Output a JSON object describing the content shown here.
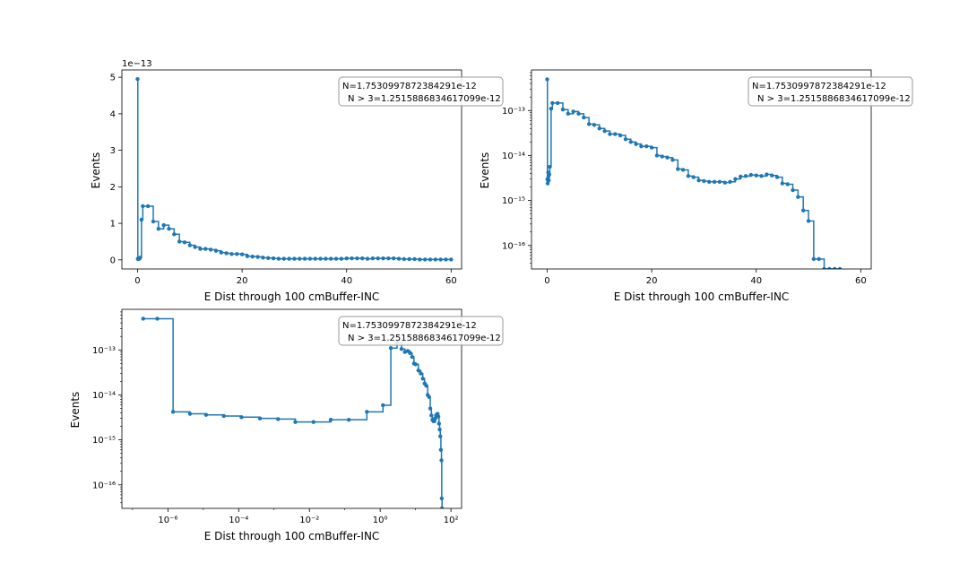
{
  "chart_data": [
    {
      "type": "line",
      "xlabel": "E Dist through 100 cmBuffer-INC",
      "ylabel": "Events",
      "yscale": "linear",
      "xscale": "linear",
      "xlim": [
        -3,
        62
      ],
      "ylim": [
        -0.25,
        5.2
      ],
      "x_ticks": [
        "0",
        "20",
        "40",
        "60"
      ],
      "y_ticks": [
        "0",
        "1",
        "2",
        "3",
        "4",
        "5"
      ],
      "y_multiplier": "1e−13",
      "annotation": [
        "N=1.7530997872384291e-12",
        "N > 3=1.2515886834617099e-12"
      ],
      "series_color": "#1f77b4",
      "x": [
        0,
        0.05,
        0.1,
        0.15,
        0.2,
        0.25,
        0.3,
        0.4,
        0.5,
        0.75,
        1,
        2,
        3,
        4,
        5,
        6,
        7,
        8,
        9,
        10,
        11,
        12,
        13,
        14,
        15,
        16,
        17,
        18,
        19,
        20,
        21,
        22,
        23,
        24,
        25,
        26,
        27,
        28,
        29,
        30,
        31,
        32,
        33,
        34,
        35,
        36,
        37,
        38,
        39,
        40,
        41,
        42,
        43,
        44,
        45,
        46,
        47,
        48,
        49,
        50,
        51,
        52,
        53,
        54,
        55,
        56,
        57,
        58,
        59,
        60
      ],
      "y": [
        4.95,
        0.03,
        0.02,
        0.03,
        0.04,
        0.03,
        0.03,
        0.04,
        0.06,
        1.1,
        1.47,
        1.47,
        1.05,
        0.85,
        0.95,
        0.85,
        0.7,
        0.5,
        0.48,
        0.4,
        0.35,
        0.3,
        0.3,
        0.28,
        0.25,
        0.2,
        0.18,
        0.16,
        0.16,
        0.15,
        0.1,
        0.09,
        0.08,
        0.06,
        0.05,
        0.04,
        0.03,
        0.03,
        0.03,
        0.03,
        0.03,
        0.03,
        0.03,
        0.03,
        0.03,
        0.03,
        0.03,
        0.03,
        0.03,
        0.04,
        0.04,
        0.04,
        0.04,
        0.03,
        0.04,
        0.04,
        0.04,
        0.04,
        0.04,
        0.03,
        0.02,
        0.02,
        0.02,
        0.01,
        0.01,
        0.01,
        0.01,
        0.01,
        0.01,
        0.01
      ]
    },
    {
      "type": "line",
      "xlabel": "E Dist through 100 cmBuffer-INC",
      "ylabel": "Events",
      "yscale": "log",
      "xscale": "linear",
      "xlim": [
        -3,
        62
      ],
      "ylim": [
        3e-17,
        8e-13
      ],
      "x_ticks": [
        "0",
        "20",
        "40",
        "60"
      ],
      "y_ticks": [
        "10⁻¹³",
        "10⁻¹⁴",
        "10⁻¹⁵",
        "10⁻¹⁶"
      ],
      "annotation": [
        "N=1.7530997872384291e-12",
        "N > 3=1.2515886834617099e-12"
      ],
      "series_color": "#1f77b4",
      "x": [
        0,
        0.05,
        0.1,
        0.15,
        0.2,
        0.25,
        0.3,
        0.4,
        0.5,
        0.75,
        1,
        2,
        3,
        4,
        5,
        6,
        7,
        8,
        9,
        10,
        11,
        12,
        13,
        14,
        15,
        16,
        17,
        18,
        19,
        20,
        21,
        22,
        23,
        24,
        25,
        26,
        27,
        28,
        29,
        30,
        31,
        32,
        33,
        34,
        35,
        36,
        37,
        38,
        39,
        40,
        41,
        42,
        43,
        44,
        45,
        46,
        47,
        48,
        49,
        50,
        51,
        52,
        53,
        54,
        55,
        56
      ],
      "y": [
        4.95e-13,
        3e-15,
        2.4e-15,
        2.8e-15,
        4.2e-15,
        3.5e-15,
        2.8e-15,
        3.8e-15,
        5.6e-15,
        1.1e-13,
        1.47e-13,
        1.47e-13,
        1.05e-13,
        8.5e-14,
        9.5e-14,
        8.5e-14,
        7e-14,
        5e-14,
        4.8e-14,
        4e-14,
        3.5e-14,
        3e-14,
        3e-14,
        2.8e-14,
        2.3e-14,
        2e-14,
        1.8e-14,
        1.6e-14,
        1.6e-14,
        1.5e-14,
        1e-14,
        9.5e-15,
        9e-15,
        8e-15,
        5e-15,
        4.8e-15,
        3.5e-15,
        3.3e-15,
        2.8e-15,
        2.7e-15,
        2.6e-15,
        2.6e-15,
        2.6e-15,
        2.5e-15,
        2.6e-15,
        3e-15,
        3.4e-15,
        3.5e-15,
        3.7e-15,
        3.6e-15,
        3.5e-15,
        3.8e-15,
        3.6e-15,
        3.3e-15,
        2.4e-15,
        2.3e-15,
        1.7e-15,
        1.2e-15,
        6e-16,
        3.5e-16,
        5e-17,
        5e-17,
        3e-17,
        3e-17,
        3e-17,
        3e-17
      ]
    },
    {
      "type": "line",
      "xlabel": "E Dist through 100 cmBuffer-INC",
      "ylabel": "Events",
      "yscale": "log",
      "xscale": "log",
      "xlim": [
        5e-08,
        200
      ],
      "ylim": [
        3e-17,
        8e-13
      ],
      "x_ticks": [
        "10⁻⁶",
        "10⁻⁴",
        "10⁻²",
        "10⁰",
        "10²"
      ],
      "y_ticks": [
        "10⁻¹³",
        "10⁻¹⁴",
        "10⁻¹⁵",
        "10⁻¹⁶"
      ],
      "annotation": [
        "N=1.7530997872384291e-12",
        "N > 3=1.2515886834617099e-12"
      ],
      "series_color": "#1f77b4",
      "x": [
        2e-07,
        5e-07,
        1.4e-06,
        4.2e-06,
        1.2e-05,
        3.8e-05,
        0.00012,
        0.0004,
        0.0013,
        0.004,
        0.013,
        0.04,
        0.13,
        0.42,
        1.2,
        2,
        3,
        4,
        5,
        6,
        7,
        8,
        9,
        10,
        12,
        14,
        16,
        18,
        20,
        22,
        24,
        26,
        28,
        30,
        32,
        34,
        36,
        38,
        40,
        42,
        44,
        46,
        48,
        50,
        52,
        54,
        55,
        56
      ],
      "y": [
        4.95e-13,
        4.95e-13,
        4.2e-15,
        3.8e-15,
        3.6e-15,
        3.4e-15,
        3.2e-15,
        3e-15,
        2.9e-15,
        2.5e-15,
        2.5e-15,
        2.8e-15,
        2.8e-15,
        4.2e-15,
        5.9e-15,
        1.1e-13,
        1.47e-13,
        1.05e-13,
        9e-14,
        9.5e-14,
        8.5e-14,
        7e-14,
        5e-14,
        4.8e-14,
        3.5e-14,
        3e-14,
        2.3e-14,
        1.8e-14,
        1.6e-14,
        1e-14,
        9e-15,
        5e-15,
        3.5e-15,
        2.8e-15,
        2.6e-15,
        2.6e-15,
        3e-15,
        3.5e-15,
        3.7e-15,
        3.8e-15,
        3.3e-15,
        2.3e-15,
        1.7e-15,
        1.2e-15,
        6e-16,
        3.5e-16,
        5e-17,
        3e-17
      ]
    }
  ]
}
